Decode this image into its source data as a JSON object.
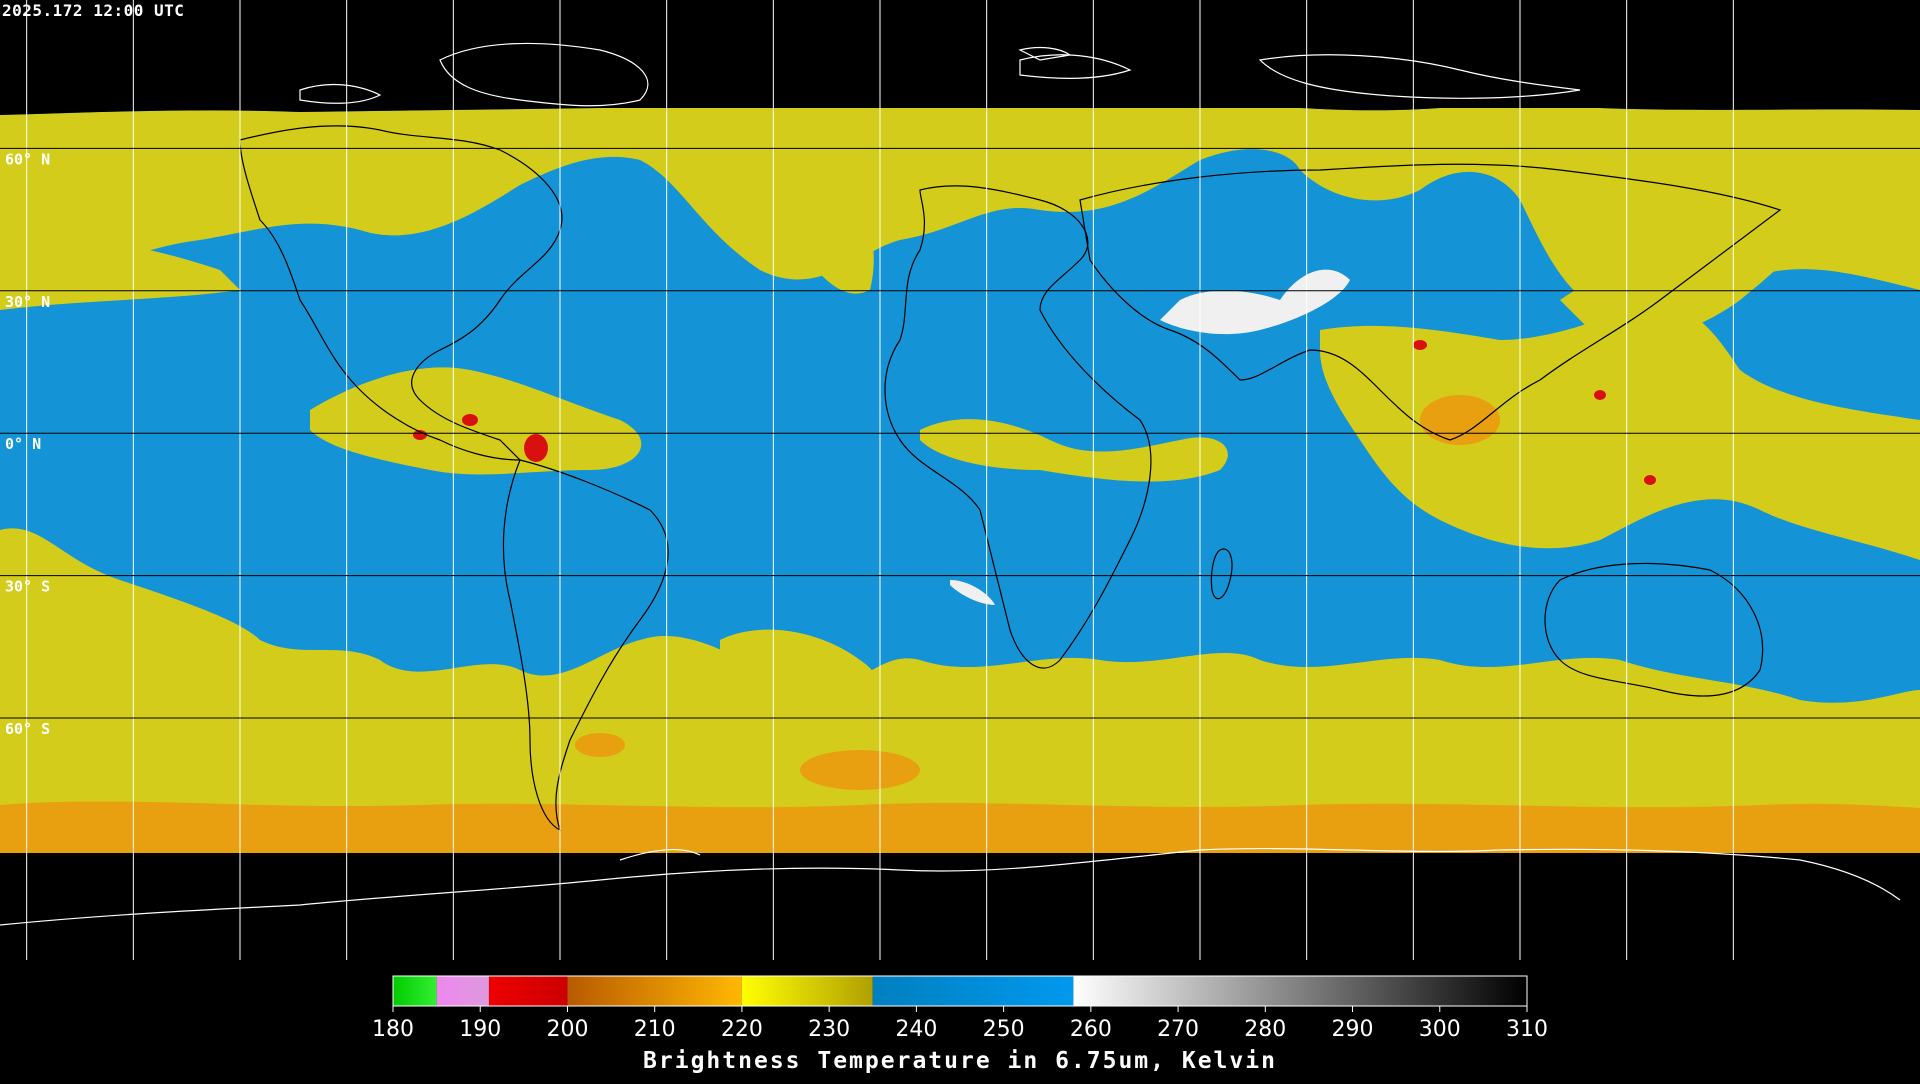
{
  "timestamp": "2025.172 12:00 UTC",
  "map": {
    "projection": "equirectangular",
    "lat_labels": [
      "60° N",
      "30° N",
      "0° N",
      "30° S",
      "60° S"
    ],
    "lat_values": [
      60,
      30,
      0,
      -30,
      -60
    ],
    "grid_lon_step": 20,
    "grid_color": "#ffffff",
    "coast_color": "#000000"
  },
  "colorbar": {
    "title": "Brightness Temperature in 6.75um, Kelvin",
    "tick_labels": [
      "180",
      "190",
      "200",
      "210",
      "220",
      "230",
      "240",
      "250",
      "260",
      "270",
      "280",
      "290",
      "300",
      "310"
    ],
    "min": 180,
    "max": 310,
    "segments": [
      {
        "from": 180,
        "to": 185,
        "colors": [
          "#00cc00",
          "#33ee33"
        ]
      },
      {
        "from": 185,
        "to": 191,
        "colors": [
          "#ee88ee",
          "#dd99dd"
        ]
      },
      {
        "from": 191,
        "to": 200,
        "colors": [
          "#ee0000",
          "#cc0000"
        ]
      },
      {
        "from": 200,
        "to": 220,
        "colors": [
          "#b85a00",
          "#ffb800"
        ]
      },
      {
        "from": 220,
        "to": 235,
        "colors": [
          "#ffff00",
          "#b0a000"
        ]
      },
      {
        "from": 235,
        "to": 258,
        "colors": [
          "#0080c0",
          "#0099ee"
        ]
      },
      {
        "from": 258,
        "to": 310,
        "colors": [
          "#ffffff",
          "#000000"
        ]
      }
    ]
  },
  "palette": {
    "blue": "#1493d6",
    "yellow": "#d4cc1a",
    "orange": "#e8a010",
    "red": "#d81010",
    "white": "#f0f0f0"
  }
}
